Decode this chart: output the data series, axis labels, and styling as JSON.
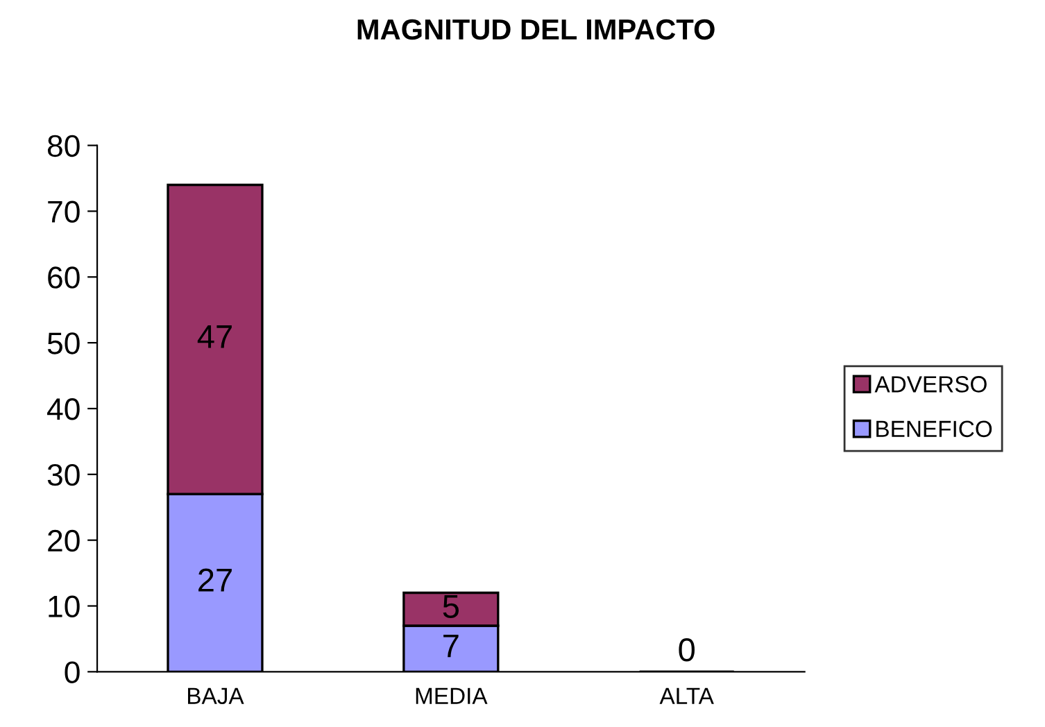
{
  "chart_data": {
    "type": "bar",
    "title": "MAGNITUD DEL IMPACTO",
    "categories": [
      "BAJA",
      "MEDIA",
      "ALTA"
    ],
    "stacked": true,
    "legend": "right",
    "grid": false,
    "ylim": [
      0,
      80
    ],
    "yticks": [
      0,
      10,
      20,
      30,
      40,
      50,
      60,
      70,
      80
    ],
    "series": [
      {
        "name": "BENEFICO",
        "color": "#9999ff",
        "values": [
          27,
          7,
          0
        ],
        "value_labels": [
          "27",
          "7",
          null
        ]
      },
      {
        "name": "ADVERSO",
        "color": "#993366",
        "values": [
          47,
          5,
          0
        ],
        "value_labels": [
          "47",
          "5",
          "0"
        ]
      }
    ]
  }
}
